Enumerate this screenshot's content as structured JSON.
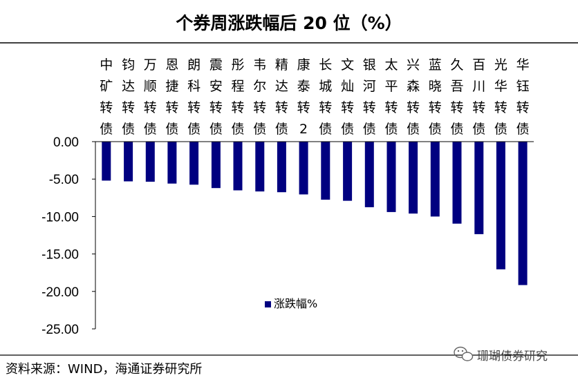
{
  "chart_data": {
    "type": "bar",
    "title": "个券周涨跌幅后 20 位（%）",
    "categories": [
      "中矿转债",
      "钧达转债",
      "万顺转债",
      "恩捷转债",
      "朗科转债",
      "震安转债",
      "彤程转债",
      "韦尔转债",
      "精达转债",
      "康泰转2",
      "长城转债",
      "文灿转债",
      "银河转债",
      "太平转债",
      "兴森转债",
      "蓝晓转债",
      "久吾转债",
      "百川转债",
      "光华转债",
      "华钰转债"
    ],
    "series": [
      {
        "name": "涨跌幅%",
        "values": [
          -5.2,
          -5.3,
          -5.35,
          -5.6,
          -5.75,
          -6.2,
          -6.5,
          -6.65,
          -6.75,
          -7.05,
          -7.75,
          -7.9,
          -8.75,
          -9.4,
          -9.6,
          -10.0,
          -10.95,
          -12.35,
          -17.05,
          -19.15
        ]
      }
    ],
    "y_ticks": [
      "0.00",
      "-5.00",
      "-10.00",
      "-15.00",
      "-20.00",
      "-25.00"
    ],
    "ylim": [
      -25,
      0
    ],
    "grid": false,
    "legend_position": "inside-lower-middle",
    "colors": {
      "bar": "#000080",
      "axis": "#000000"
    }
  },
  "footer": {
    "source": "资料来源：WIND，海通证券研究所",
    "watermark": "珊瑚债券研究"
  }
}
